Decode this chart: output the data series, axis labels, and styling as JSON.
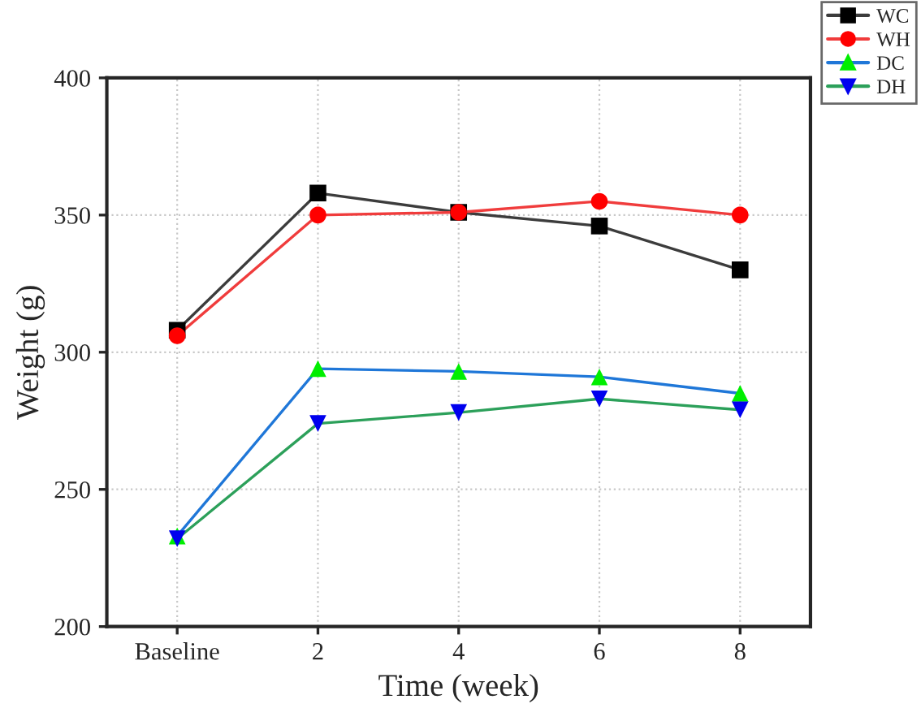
{
  "chart_data": {
    "type": "line",
    "xlabel": "Time (week)",
    "ylabel": "Weight (g)",
    "categories": [
      "Baseline",
      "2",
      "4",
      "6",
      "8"
    ],
    "ylim": [
      200,
      400
    ],
    "yticks": [
      200,
      250,
      300,
      350,
      400
    ],
    "grid": true,
    "legend": "top right",
    "series": [
      {
        "name": "WC",
        "color": "#3c3c3c",
        "marker": "square",
        "colors": [
          "#000000",
          "#000000",
          "#000000",
          "#000000",
          "#000000"
        ],
        "values": [
          308,
          358,
          351,
          346,
          330
        ]
      },
      {
        "name": "WH",
        "color": "#f03c3c",
        "marker": "circle",
        "colors": [
          "#ff0000",
          "#ff0000",
          "#ff0000",
          "#ff0000",
          "#ff0000"
        ],
        "values": [
          306,
          350,
          351,
          355,
          350
        ]
      },
      {
        "name": "DC",
        "color": "#1f77d8",
        "marker": "triangle",
        "colors": [
          "#00ee00",
          "#00ee00",
          "#00ee00",
          "#00ee00",
          "#00ee00"
        ],
        "values": [
          233,
          294,
          293,
          291,
          285
        ]
      },
      {
        "name": "DH",
        "color": "#2ca05a",
        "marker": "triangle_down",
        "colors": [
          "#0000ee",
          "#0000ee",
          "#0000ee",
          "#0000ee",
          "#0000ee"
        ],
        "values": [
          232,
          274,
          278,
          283,
          279
        ]
      }
    ]
  }
}
